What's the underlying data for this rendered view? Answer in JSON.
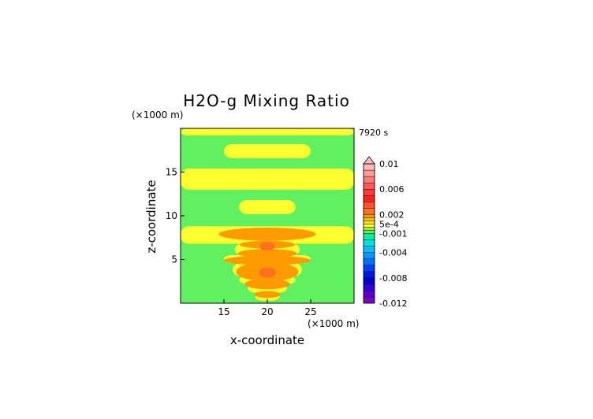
{
  "chart_data": {
    "type": "heatmap",
    "title": "H2O-g Mixing Ratio",
    "xlabel": "x-coordinate",
    "ylabel": "z-coordinate",
    "x_unit_label": "(×1000 m)",
    "y_unit_label": "(×1000 m)",
    "time_label": "7920 s",
    "xlim": [
      10,
      30
    ],
    "ylim": [
      0,
      20
    ],
    "x_ticks": [
      15,
      20,
      25
    ],
    "y_ticks": [
      5,
      10,
      15
    ],
    "colorbar": {
      "levels": [
        -0.012,
        -0.011,
        -0.01,
        -0.009,
        -0.008,
        -0.007,
        -0.006,
        -0.005,
        -0.004,
        -0.003,
        -0.002,
        -0.001,
        -0.0005,
        0,
        0.0005,
        0.001,
        0.0015,
        0.002,
        0.003,
        0.004,
        0.005,
        0.006,
        0.007,
        0.008,
        0.009,
        0.01
      ],
      "colors": [
        "#7b00c8",
        "#5a00d0",
        "#3000d8",
        "#0000c8",
        "#0018e0",
        "#0040f0",
        "#0070ff",
        "#0098ff",
        "#00c0ff",
        "#00e0e0",
        "#00f0a0",
        "#60f060",
        "#a0f040",
        "#ffff30",
        "#ffe020",
        "#ffc000",
        "#ff9a00",
        "#ff7020",
        "#ff5030",
        "#ff2020",
        "#ff3a3a",
        "#ff5a5a",
        "#ff7a7a",
        "#ff9a9a",
        "#ffbaba"
      ],
      "tick_labels": [
        {
          "value": 0.01,
          "label": "0.01"
        },
        {
          "value": 0.006,
          "label": "0.006"
        },
        {
          "value": 0.002,
          "label": "0.002"
        },
        {
          "value": 0.0005,
          "label": "5e-4"
        },
        {
          "value": -0.001,
          "label": "-0.001"
        },
        {
          "value": -0.004,
          "label": "-0.004"
        },
        {
          "value": -0.008,
          "label": "-0.008"
        },
        {
          "value": -0.012,
          "label": "-0.012"
        }
      ],
      "top_marker": "triangle"
    },
    "field_bands": [
      {
        "z0": 0,
        "z1": 0.3,
        "value": -0.0008,
        "width": 0
      },
      {
        "z0": 0.3,
        "z1": 1.2,
        "value": 0.0002,
        "width": 2.8
      },
      {
        "z0": 1.2,
        "z1": 2.2,
        "value": 0.0002,
        "width": 4.5
      },
      {
        "z0": 2.2,
        "z1": 3.1,
        "value": 0.0002,
        "width": 6.5
      },
      {
        "z0": 3.1,
        "z1": 4.6,
        "value": 0.0002,
        "width": 8.0
      },
      {
        "z0": 4.6,
        "z1": 5.5,
        "value": 0.0002,
        "width": 10.0
      },
      {
        "z0": 5.5,
        "z1": 6.8,
        "value": 0.0002,
        "width": 7.5
      },
      {
        "z0": 6.8,
        "z1": 8.8,
        "value": 0.0002,
        "width": 20
      },
      {
        "z0": 8.8,
        "z1": 10.2,
        "value": -0.0008,
        "width": 0
      },
      {
        "z0": 10.2,
        "z1": 11.8,
        "value": 0.0002,
        "width": 6.5
      },
      {
        "z0": 11.8,
        "z1": 13.0,
        "value": -0.0008,
        "width": 0
      },
      {
        "z0": 13.0,
        "z1": 15.4,
        "value": 0.0002,
        "width": 20
      },
      {
        "z0": 15.4,
        "z1": 16.6,
        "value": -0.0008,
        "width": 0
      },
      {
        "z0": 16.6,
        "z1": 18.2,
        "value": 0.0002,
        "width": 10
      },
      {
        "z0": 18.2,
        "z1": 19.2,
        "value": -0.0008,
        "width": 0
      },
      {
        "z0": 19.2,
        "z1": 20.0,
        "value": 0.0002,
        "width": 20
      }
    ],
    "orange_cores": [
      {
        "zc": 7.9,
        "halfheight": 0.75,
        "halfwidth": 5.6,
        "value": 0.0017
      },
      {
        "zc": 6.7,
        "halfheight": 0.45,
        "halfwidth": 3.2,
        "value": 0.0017
      },
      {
        "zc": 5.7,
        "halfheight": 0.5,
        "halfwidth": 3.4,
        "value": 0.0017
      },
      {
        "zc": 4.9,
        "halfheight": 0.55,
        "halfwidth": 5.0,
        "value": 0.0017
      },
      {
        "zc": 3.6,
        "halfheight": 1.1,
        "halfwidth": 3.6,
        "value": 0.0017
      },
      {
        "zc": 2.2,
        "halfheight": 0.6,
        "halfwidth": 2.6,
        "value": 0.0017
      },
      {
        "zc": 1.0,
        "halfheight": 0.4,
        "halfwidth": 1.5,
        "value": 0.0017
      }
    ],
    "red_cores": [
      {
        "zc": 6.5,
        "halfheight": 0.5,
        "halfwidth": 0.9,
        "value": 0.0025
      },
      {
        "zc": 3.5,
        "halfheight": 0.6,
        "halfwidth": 1.0,
        "value": 0.0025
      }
    ]
  }
}
